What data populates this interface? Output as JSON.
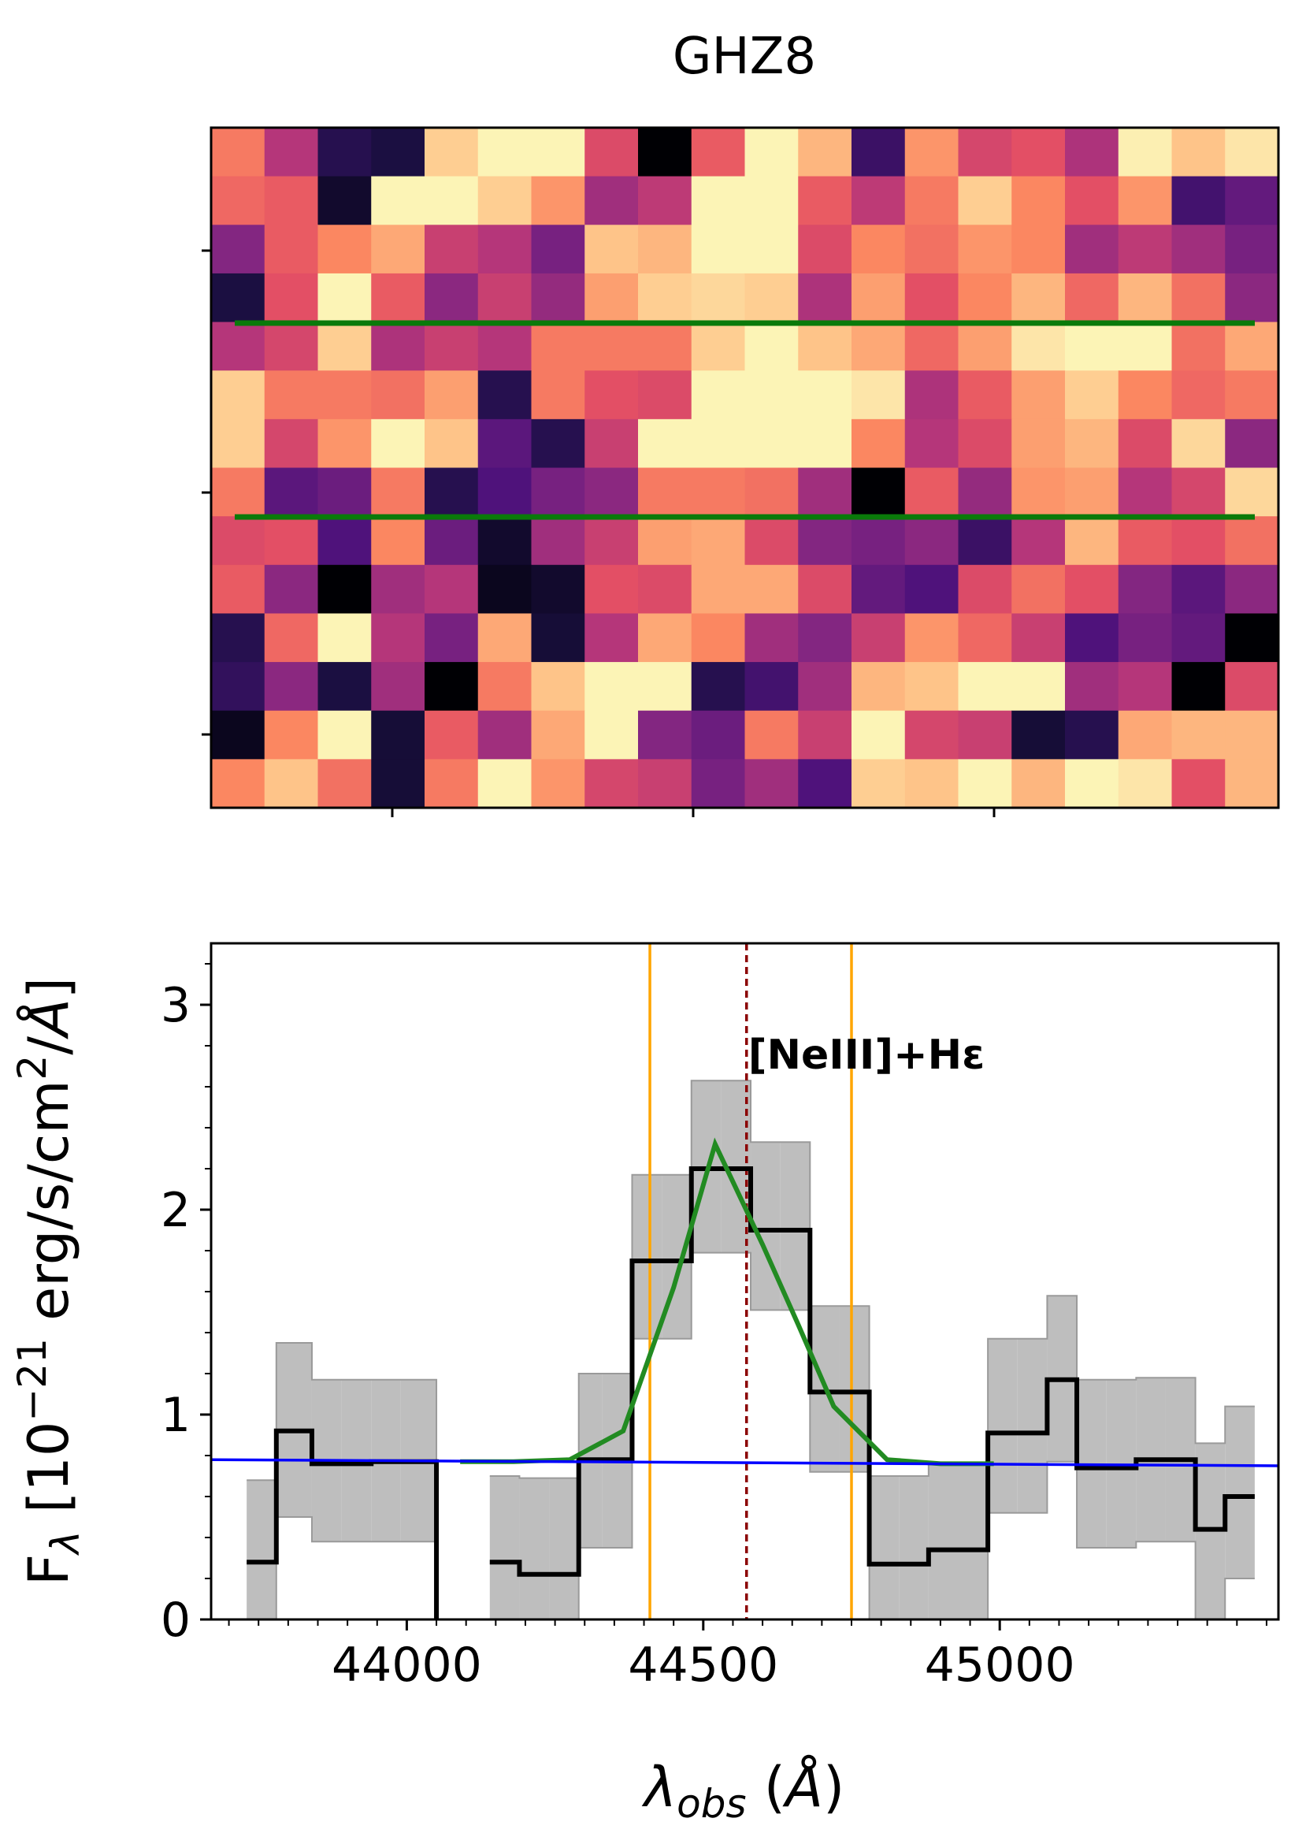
{
  "figure_title": "GHZ8",
  "chart_data": [
    {
      "type": "heatmap",
      "title": "",
      "rows": 14,
      "cols": 20,
      "colormap": "magma",
      "values": [
        [
          0.72,
          0.5,
          0.15,
          0.12,
          0.9,
          0.98,
          0.98,
          0.6,
          0.0,
          0.65,
          0.98,
          0.85,
          0.2,
          0.78,
          0.58,
          0.62,
          0.48,
          0.97,
          0.88,
          0.95
        ],
        [
          0.68,
          0.65,
          0.08,
          0.98,
          0.98,
          0.9,
          0.78,
          0.45,
          0.52,
          0.98,
          0.98,
          0.65,
          0.52,
          0.72,
          0.9,
          0.75,
          0.62,
          0.78,
          0.22,
          0.3
        ],
        [
          0.38,
          0.65,
          0.75,
          0.82,
          0.55,
          0.5,
          0.35,
          0.88,
          0.85,
          0.98,
          0.98,
          0.6,
          0.75,
          0.7,
          0.78,
          0.75,
          0.45,
          0.52,
          0.45,
          0.35
        ],
        [
          0.12,
          0.62,
          0.98,
          0.65,
          0.4,
          0.55,
          0.42,
          0.8,
          0.9,
          0.92,
          0.9,
          0.48,
          0.8,
          0.62,
          0.75,
          0.85,
          0.68,
          0.85,
          0.7,
          0.4
        ],
        [
          0.5,
          0.58,
          0.9,
          0.48,
          0.55,
          0.5,
          0.72,
          0.72,
          0.72,
          0.9,
          0.98,
          0.88,
          0.82,
          0.68,
          0.8,
          0.95,
          0.98,
          0.98,
          0.7,
          0.82
        ],
        [
          0.9,
          0.72,
          0.72,
          0.7,
          0.8,
          0.15,
          0.72,
          0.62,
          0.6,
          0.98,
          0.98,
          0.98,
          0.95,
          0.48,
          0.65,
          0.8,
          0.9,
          0.75,
          0.68,
          0.72
        ],
        [
          0.9,
          0.58,
          0.78,
          0.98,
          0.88,
          0.28,
          0.15,
          0.55,
          0.98,
          0.98,
          0.98,
          0.98,
          0.75,
          0.5,
          0.6,
          0.8,
          0.85,
          0.6,
          0.92,
          0.4
        ],
        [
          0.72,
          0.28,
          0.32,
          0.72,
          0.15,
          0.25,
          0.35,
          0.4,
          0.72,
          0.72,
          0.7,
          0.45,
          0.0,
          0.65,
          0.42,
          0.78,
          0.8,
          0.5,
          0.58,
          0.92
        ],
        [
          0.6,
          0.62,
          0.25,
          0.75,
          0.32,
          0.08,
          0.45,
          0.55,
          0.8,
          0.82,
          0.6,
          0.38,
          0.35,
          0.4,
          0.2,
          0.5,
          0.85,
          0.65,
          0.62,
          0.7
        ],
        [
          0.65,
          0.4,
          0.0,
          0.45,
          0.5,
          0.05,
          0.08,
          0.62,
          0.6,
          0.82,
          0.82,
          0.6,
          0.3,
          0.25,
          0.6,
          0.7,
          0.62,
          0.38,
          0.28,
          0.4
        ],
        [
          0.15,
          0.68,
          0.98,
          0.5,
          0.35,
          0.82,
          0.1,
          0.5,
          0.82,
          0.75,
          0.45,
          0.38,
          0.55,
          0.78,
          0.68,
          0.55,
          0.25,
          0.35,
          0.3,
          0.0
        ],
        [
          0.18,
          0.4,
          0.12,
          0.45,
          0.0,
          0.72,
          0.88,
          0.98,
          0.98,
          0.15,
          0.22,
          0.45,
          0.85,
          0.88,
          0.98,
          0.98,
          0.45,
          0.5,
          0.0,
          0.6
        ],
        [
          0.05,
          0.75,
          0.98,
          0.1,
          0.65,
          0.45,
          0.82,
          0.98,
          0.38,
          0.32,
          0.72,
          0.55,
          0.98,
          0.58,
          0.55,
          0.1,
          0.15,
          0.82,
          0.85,
          0.85
        ],
        [
          0.75,
          0.88,
          0.7,
          0.1,
          0.72,
          0.98,
          0.78,
          0.58,
          0.55,
          0.35,
          0.45,
          0.25,
          0.9,
          0.88,
          0.98,
          0.85,
          0.98,
          0.95,
          0.62,
          0.85
        ]
      ],
      "overlay_lines": {
        "color": "#0a7a0a"
      }
    },
    {
      "type": "line",
      "title": "",
      "xlabel": "λ_obs (Å)",
      "ylabel": "F_λ [10^−21 erg/s/cm²/Å]",
      "xlim": [
        43670,
        45470
      ],
      "ylim": [
        0,
        3.3
      ],
      "xticks": [
        44000,
        44500,
        45000
      ],
      "yticks": [
        0,
        1,
        2,
        3
      ],
      "x_minor_step": 50,
      "y_minor_step": 0.2,
      "series": [
        {
          "style": "step",
          "color": "#000000",
          "bin_edges": [
            43730,
            43780,
            43840,
            43890,
            43940,
            43990,
            44050,
            44090,
            44140,
            44190,
            44240,
            44290,
            44330,
            44380,
            44430,
            44480,
            44530,
            44580,
            44630,
            44680,
            44730,
            44780,
            44830,
            44880,
            44930,
            44980,
            45030,
            45080,
            45130,
            45180,
            45230,
            45280,
            45330,
            45380,
            45430
          ],
          "values": [
            0.28,
            0.92,
            0.76,
            0.76,
            0.77,
            0.77,
            -0.3,
            null,
            0.28,
            0.22,
            0.22,
            0.78,
            0.78,
            1.75,
            1.75,
            2.2,
            2.2,
            1.9,
            1.9,
            1.11,
            1.11,
            0.27,
            0.27,
            0.34,
            0.34,
            0.91,
            0.91,
            1.17,
            0.74,
            0.74,
            0.78,
            0.78,
            0.44,
            0.6
          ]
        },
        {
          "style": "band",
          "color": "#bebebe",
          "bin_edges": [
            43730,
            43780,
            43840,
            43890,
            43940,
            43990,
            44050,
            44090,
            44140,
            44190,
            44240,
            44290,
            44330,
            44380,
            44430,
            44480,
            44530,
            44580,
            44630,
            44680,
            44730,
            44780,
            44830,
            44880,
            44930,
            44980,
            45030,
            45080,
            45130,
            45180,
            45230,
            45280,
            45330,
            45380,
            45430
          ],
          "lower": [
            -0.4,
            0.5,
            0.38,
            0.38,
            0.38,
            0.38,
            -0.5,
            null,
            -0.2,
            -0.3,
            -0.3,
            0.35,
            0.35,
            1.37,
            1.37,
            1.79,
            1.79,
            1.51,
            1.51,
            0.72,
            0.72,
            -0.14,
            -0.14,
            -0.05,
            -0.05,
            0.52,
            0.52,
            0.77,
            0.35,
            0.35,
            0.38,
            0.38,
            0.0,
            0.2
          ],
          "upper": [
            0.68,
            1.35,
            1.17,
            1.17,
            1.17,
            1.17,
            -0.3,
            null,
            0.7,
            0.69,
            0.69,
            1.2,
            1.2,
            2.17,
            2.17,
            2.63,
            2.63,
            2.33,
            2.33,
            1.53,
            1.53,
            0.7,
            0.7,
            0.76,
            0.76,
            1.37,
            1.37,
            1.58,
            1.17,
            1.17,
            1.18,
            1.18,
            0.86,
            1.04
          ]
        },
        {
          "style": "line",
          "color": "#228b22",
          "x": [
            44090,
            44180,
            44275,
            44365,
            44450,
            44520,
            44600,
            44660,
            44720,
            44810,
            44900,
            44990
          ],
          "y": [
            0.77,
            0.77,
            0.78,
            0.92,
            1.62,
            2.32,
            1.83,
            1.44,
            1.04,
            0.78,
            0.76,
            0.76
          ]
        },
        {
          "style": "line",
          "color": "#0000ff",
          "x": [
            43670,
            45470
          ],
          "y": [
            0.78,
            0.75
          ]
        }
      ],
      "vlines": [
        {
          "x": 44410,
          "color": "#ffa500",
          "style": "solid"
        },
        {
          "x": 44573,
          "color": "#8b0000",
          "style": "dashed"
        },
        {
          "x": 44750,
          "color": "#ffa500",
          "style": "solid"
        }
      ],
      "annotation": {
        "text": "[NeIII]+Hε",
        "x": 44573,
        "y": 2.75
      }
    }
  ]
}
